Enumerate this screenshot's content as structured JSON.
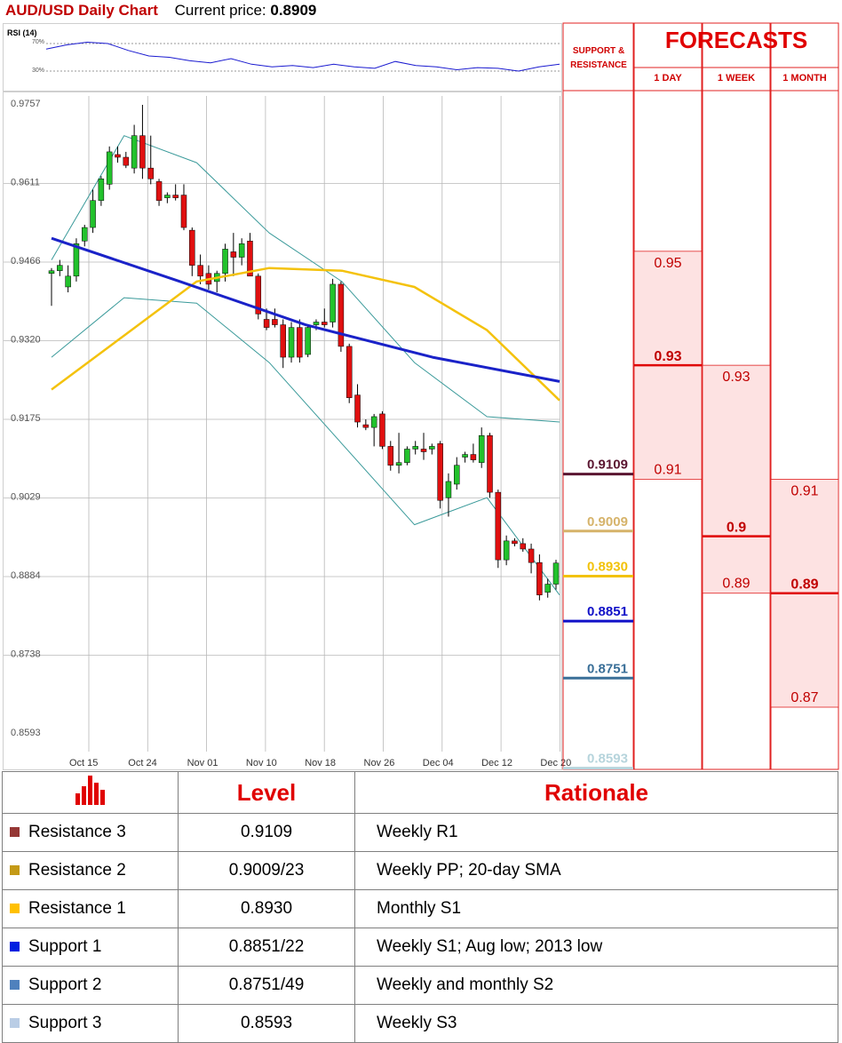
{
  "header": {
    "title": "AUD/USD Daily Chart",
    "price_label": "Current price:",
    "price_value": "0.8909"
  },
  "rsi": {
    "title": "RSI (14)",
    "levels": [
      "70%",
      "30%"
    ]
  },
  "forecasts": {
    "title": "FORECASTS",
    "sr_title_1": "SUPPORT &",
    "sr_title_2": "RESISTANCE",
    "columns": [
      "1 DAY",
      "1 WEEK",
      "1 MONTH"
    ],
    "ranges": [
      {
        "low": "0.91",
        "mid": "0.93",
        "high": "0.95",
        "lo": 0.91,
        "mi": 0.93,
        "hi": 0.95
      },
      {
        "low": "0.89",
        "mid": "0.9",
        "high": "0.93",
        "lo": 0.89,
        "mi": 0.9,
        "hi": 0.93
      },
      {
        "low": "0.87",
        "mid": "0.89",
        "high": "0.91",
        "lo": 0.87,
        "mi": 0.89,
        "hi": 0.91
      }
    ]
  },
  "levels_panel": [
    {
      "label": "0.9109",
      "value": 0.9109,
      "color": "#5a1530"
    },
    {
      "label": "0.9009",
      "value": 0.9009,
      "color": "#d6b36a"
    },
    {
      "label": "0.8930",
      "value": 0.893,
      "color": "#f2c20a"
    },
    {
      "label": "0.8851",
      "value": 0.8851,
      "color": "#1010c8"
    },
    {
      "label": "0.8751",
      "value": 0.8751,
      "color": "#3a6f98"
    },
    {
      "label": "0.8593",
      "value": 0.8593,
      "color": "#b6d4dc"
    }
  ],
  "chart_data": {
    "type": "candlestick",
    "title": "AUD/USD Daily Chart",
    "y_ticks": [
      "0.9757",
      "0.9611",
      "0.9466",
      "0.9320",
      "0.9175",
      "0.9029",
      "0.8884",
      "0.8738",
      "0.8593"
    ],
    "ylim": [
      0.8593,
      0.9757
    ],
    "x_ticks": [
      "Oct 15",
      "Oct 24",
      "Nov 01",
      "Nov 10",
      "Nov 18",
      "Nov 26",
      "Dec 04",
      "Dec 12",
      "Dec 20"
    ],
    "grid": true,
    "candles": [
      {
        "o": 0.9445,
        "h": 0.9455,
        "l": 0.9385,
        "c": 0.945
      },
      {
        "o": 0.945,
        "h": 0.947,
        "l": 0.944,
        "c": 0.946
      },
      {
        "o": 0.942,
        "h": 0.946,
        "l": 0.941,
        "c": 0.944
      },
      {
        "o": 0.944,
        "h": 0.951,
        "l": 0.943,
        "c": 0.95
      },
      {
        "o": 0.9505,
        "h": 0.9535,
        "l": 0.9495,
        "c": 0.953
      },
      {
        "o": 0.953,
        "h": 0.96,
        "l": 0.952,
        "c": 0.958
      },
      {
        "o": 0.958,
        "h": 0.9625,
        "l": 0.957,
        "c": 0.962
      },
      {
        "o": 0.961,
        "h": 0.968,
        "l": 0.96,
        "c": 0.967
      },
      {
        "o": 0.9665,
        "h": 0.968,
        "l": 0.965,
        "c": 0.966
      },
      {
        "o": 0.966,
        "h": 0.967,
        "l": 0.964,
        "c": 0.9645
      },
      {
        "o": 0.964,
        "h": 0.972,
        "l": 0.963,
        "c": 0.97
      },
      {
        "o": 0.97,
        "h": 0.9757,
        "l": 0.962,
        "c": 0.964
      },
      {
        "o": 0.964,
        "h": 0.97,
        "l": 0.961,
        "c": 0.962
      },
      {
        "o": 0.9615,
        "h": 0.962,
        "l": 0.957,
        "c": 0.958
      },
      {
        "o": 0.9585,
        "h": 0.9595,
        "l": 0.9575,
        "c": 0.959
      },
      {
        "o": 0.959,
        "h": 0.961,
        "l": 0.958,
        "c": 0.9585
      },
      {
        "o": 0.959,
        "h": 0.961,
        "l": 0.9525,
        "c": 0.953
      },
      {
        "o": 0.9525,
        "h": 0.953,
        "l": 0.944,
        "c": 0.946
      },
      {
        "o": 0.946,
        "h": 0.948,
        "l": 0.9425,
        "c": 0.944
      },
      {
        "o": 0.9445,
        "h": 0.946,
        "l": 0.9415,
        "c": 0.9425
      },
      {
        "o": 0.943,
        "h": 0.945,
        "l": 0.941,
        "c": 0.9445
      },
      {
        "o": 0.9445,
        "h": 0.95,
        "l": 0.943,
        "c": 0.949
      },
      {
        "o": 0.9485,
        "h": 0.952,
        "l": 0.944,
        "c": 0.9475
      },
      {
        "o": 0.9475,
        "h": 0.951,
        "l": 0.946,
        "c": 0.95
      },
      {
        "o": 0.9505,
        "h": 0.952,
        "l": 0.944,
        "c": 0.944
      },
      {
        "o": 0.944,
        "h": 0.9445,
        "l": 0.936,
        "c": 0.937
      },
      {
        "o": 0.936,
        "h": 0.938,
        "l": 0.934,
        "c": 0.9345
      },
      {
        "o": 0.936,
        "h": 0.938,
        "l": 0.9345,
        "c": 0.935
      },
      {
        "o": 0.935,
        "h": 0.936,
        "l": 0.927,
        "c": 0.929
      },
      {
        "o": 0.929,
        "h": 0.9355,
        "l": 0.928,
        "c": 0.9345
      },
      {
        "o": 0.9345,
        "h": 0.936,
        "l": 0.928,
        "c": 0.929
      },
      {
        "o": 0.9295,
        "h": 0.935,
        "l": 0.929,
        "c": 0.9345
      },
      {
        "o": 0.935,
        "h": 0.936,
        "l": 0.934,
        "c": 0.9355
      },
      {
        "o": 0.9355,
        "h": 0.938,
        "l": 0.9345,
        "c": 0.935
      },
      {
        "o": 0.9355,
        "h": 0.9435,
        "l": 0.9345,
        "c": 0.9425
      },
      {
        "o": 0.9425,
        "h": 0.943,
        "l": 0.93,
        "c": 0.931
      },
      {
        "o": 0.931,
        "h": 0.9315,
        "l": 0.9205,
        "c": 0.9215
      },
      {
        "o": 0.922,
        "h": 0.924,
        "l": 0.916,
        "c": 0.917
      },
      {
        "o": 0.9165,
        "h": 0.9175,
        "l": 0.9155,
        "c": 0.916
      },
      {
        "o": 0.916,
        "h": 0.9185,
        "l": 0.9125,
        "c": 0.918
      },
      {
        "o": 0.9185,
        "h": 0.919,
        "l": 0.912,
        "c": 0.9125
      },
      {
        "o": 0.9125,
        "h": 0.9135,
        "l": 0.908,
        "c": 0.909
      },
      {
        "o": 0.909,
        "h": 0.915,
        "l": 0.9075,
        "c": 0.9095
      },
      {
        "o": 0.9095,
        "h": 0.9125,
        "l": 0.909,
        "c": 0.912
      },
      {
        "o": 0.912,
        "h": 0.9135,
        "l": 0.911,
        "c": 0.9125
      },
      {
        "o": 0.912,
        "h": 0.915,
        "l": 0.91,
        "c": 0.9115
      },
      {
        "o": 0.912,
        "h": 0.913,
        "l": 0.911,
        "c": 0.9125
      },
      {
        "o": 0.913,
        "h": 0.9135,
        "l": 0.901,
        "c": 0.9025
      },
      {
        "o": 0.903,
        "h": 0.9075,
        "l": 0.8995,
        "c": 0.906
      },
      {
        "o": 0.9055,
        "h": 0.9105,
        "l": 0.9045,
        "c": 0.909
      },
      {
        "o": 0.9105,
        "h": 0.9115,
        "l": 0.9095,
        "c": 0.911
      },
      {
        "o": 0.911,
        "h": 0.913,
        "l": 0.9095,
        "c": 0.91
      },
      {
        "o": 0.9095,
        "h": 0.916,
        "l": 0.9085,
        "c": 0.9145
      },
      {
        "o": 0.9145,
        "h": 0.915,
        "l": 0.903,
        "c": 0.904
      },
      {
        "o": 0.904,
        "h": 0.9045,
        "l": 0.89,
        "c": 0.8915
      },
      {
        "o": 0.8915,
        "h": 0.896,
        "l": 0.8905,
        "c": 0.895
      },
      {
        "o": 0.895,
        "h": 0.8955,
        "l": 0.894,
        "c": 0.8945
      },
      {
        "o": 0.8945,
        "h": 0.8955,
        "l": 0.893,
        "c": 0.8935
      },
      {
        "o": 0.8935,
        "h": 0.8945,
        "l": 0.889,
        "c": 0.891
      },
      {
        "o": 0.891,
        "h": 0.8925,
        "l": 0.884,
        "c": 0.885
      },
      {
        "o": 0.8855,
        "h": 0.888,
        "l": 0.8845,
        "c": 0.887
      },
      {
        "o": 0.887,
        "h": 0.8915,
        "l": 0.886,
        "c": 0.8909
      }
    ],
    "sma_blue": [
      0.951,
      0.9431,
      0.935,
      0.929,
      0.9245
    ],
    "sma_yellow": [
      0.923,
      0.933,
      0.943,
      0.9455,
      0.945,
      0.942,
      0.934,
      0.921
    ],
    "bb_upper": [
      0.947,
      0.97,
      0.965,
      0.952,
      0.943,
      0.928,
      0.918,
      0.917
    ],
    "bb_lower": [
      0.929,
      0.94,
      0.939,
      0.928,
      0.913,
      0.898,
      0.903,
      0.885
    ],
    "rsi_values": [
      62,
      68,
      72,
      70,
      60,
      52,
      50,
      45,
      42,
      48,
      40,
      36,
      38,
      35,
      40,
      36,
      34,
      44,
      38,
      36,
      32,
      35,
      34,
      30,
      36,
      40
    ]
  },
  "table": {
    "col_level": "Level",
    "col_rationale": "Rationale",
    "rows": [
      {
        "name": "Resistance 3",
        "level": "0.9109",
        "rationale": "Weekly R1",
        "color": "#953735"
      },
      {
        "name": "Resistance 2",
        "level": "0.9009/23",
        "rationale": "Weekly PP; 20-day SMA",
        "color": "#c49a17"
      },
      {
        "name": "Resistance 1",
        "level": "0.8930",
        "rationale": "Monthly S1",
        "color": "#ffc000"
      },
      {
        "name": "Support 1",
        "level": "0.8851/22",
        "rationale": "Weekly S1; Aug low; 2013 low",
        "color": "#0020e0"
      },
      {
        "name": "Support 2",
        "level": "0.8751/49",
        "rationale": "Weekly and monthly S2",
        "color": "#4f81bd"
      },
      {
        "name": "Support 3",
        "level": "0.8593",
        "rationale": "Weekly S3",
        "color": "#b9cde5"
      }
    ]
  }
}
